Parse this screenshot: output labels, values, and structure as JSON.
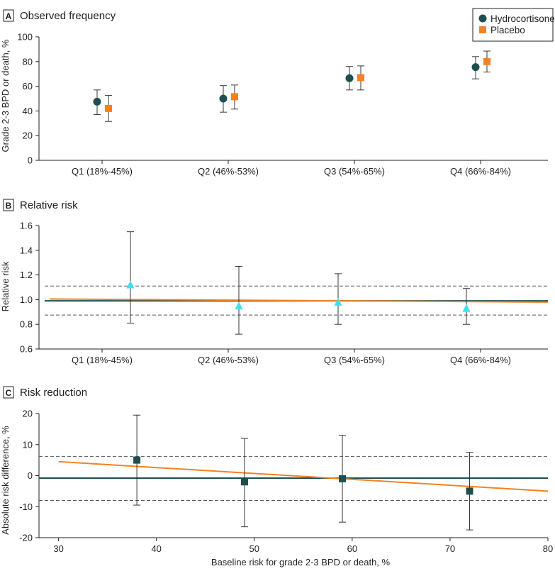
{
  "chart_data": [
    {
      "panel_letter": "A",
      "title": "Observed frequency",
      "type": "scatter",
      "ylabel": "Grade 2-3 BPD or death, %",
      "categories": [
        "Q1 (18%-45%)",
        "Q2 (46%-53%)",
        "Q3 (54%-65%)",
        "Q4 (66%-84%)"
      ],
      "ylim": [
        0,
        100
      ],
      "yticks": [
        "0",
        "20",
        "40",
        "60",
        "80",
        "100"
      ],
      "legend": {
        "placement": "top-right",
        "entries": [
          "Hydrocortisone",
          "Placebo"
        ]
      },
      "series": [
        {
          "name": "Hydrocortisone",
          "marker": "circle",
          "color": "#1f4e4f",
          "values": [
            47.5,
            50,
            66.5,
            75.5
          ],
          "ci_low": [
            37,
            39,
            57,
            66
          ],
          "ci_high": [
            57,
            60.5,
            76,
            84
          ]
        },
        {
          "name": "Placebo",
          "marker": "square",
          "color": "#f5821f",
          "values": [
            42,
            51.5,
            67,
            80
          ],
          "ci_low": [
            31.5,
            41.5,
            57,
            71.5
          ],
          "ci_high": [
            52.5,
            61,
            76.5,
            88.5
          ]
        }
      ]
    },
    {
      "panel_letter": "B",
      "title": "Relative risk",
      "type": "scatter",
      "ylabel": "Relative risk",
      "categories": [
        "Q1 (18%-45%)",
        "Q2 (46%-53%)",
        "Q3 (54%-65%)",
        "Q4 (66%-84%)"
      ],
      "ylim": [
        0.6,
        1.6
      ],
      "yticks": [
        "0.6",
        "0.8",
        "1.0",
        "1.2",
        "1.4",
        "1.6"
      ],
      "points": {
        "marker": "triangle",
        "color": "#3ee0f0",
        "values": [
          1.12,
          0.95,
          0.98,
          0.93
        ],
        "ci_low": [
          0.81,
          0.72,
          0.8,
          0.8
        ],
        "ci_high": [
          1.55,
          1.27,
          1.21,
          1.09
        ]
      },
      "reference_lines": [
        {
          "style": "solid",
          "color": "#1f4e4f",
          "y_start": 0.99,
          "y_end": 0.99
        },
        {
          "style": "solid",
          "color": "#f5821f",
          "y_start": 1.005,
          "y_end": 0.98
        },
        {
          "style": "dashed",
          "color": "#555555",
          "y_start": 1.11,
          "y_end": 1.11
        },
        {
          "style": "dashed",
          "color": "#555555",
          "y_start": 0.875,
          "y_end": 0.875
        }
      ]
    },
    {
      "panel_letter": "C",
      "title": "Risk reduction",
      "type": "scatter",
      "ylabel": "Absolute risk difference, %",
      "xlabel": "Baseline risk for grade 2-3 BPD or death, %",
      "xlim": [
        28,
        80
      ],
      "xticks": [
        "30",
        "40",
        "50",
        "60",
        "70",
        "80"
      ],
      "ylim": [
        -20,
        20
      ],
      "yticks": [
        "-20",
        "-10",
        "0",
        "10",
        "20"
      ],
      "points": {
        "marker": "square",
        "color": "#1f4e4f",
        "x": [
          38,
          49,
          59,
          72
        ],
        "values": [
          5,
          -2,
          -1,
          -5
        ],
        "ci_low": [
          -9.5,
          -16.5,
          -15,
          -17.5
        ],
        "ci_high": [
          19.5,
          12,
          13,
          7.5
        ]
      },
      "reference_lines": [
        {
          "style": "solid",
          "color": "#1f4e4f",
          "x_start": 28,
          "x_end": 80,
          "y_start": -0.8,
          "y_end": -0.8
        },
        {
          "style": "solid",
          "color": "#f5821f",
          "x_start": 30,
          "x_end": 80,
          "y_start": 4.5,
          "y_end": -5
        },
        {
          "style": "dashed",
          "color": "#555555",
          "x_start": 28,
          "x_end": 80,
          "y_start": 6.2,
          "y_end": 6.2
        },
        {
          "style": "dashed",
          "color": "#555555",
          "x_start": 28,
          "x_end": 80,
          "y_start": -8,
          "y_end": -8
        }
      ]
    }
  ]
}
